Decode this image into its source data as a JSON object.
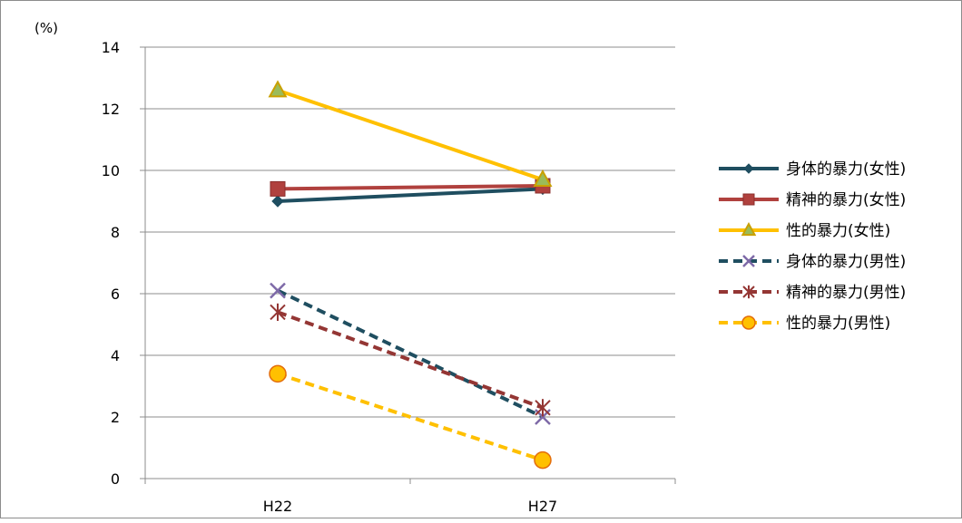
{
  "chart_data": {
    "type": "line",
    "unit_label": "(%)",
    "categories": [
      "H22",
      "H27"
    ],
    "ylim": [
      0,
      14
    ],
    "yticks": [
      0,
      2,
      4,
      6,
      8,
      10,
      12,
      14
    ],
    "grid": true,
    "legend_position": "right",
    "series": [
      {
        "name": "身体的暴力(女性)",
        "values": [
          9.0,
          9.4
        ],
        "color": "#1F4E60",
        "dash": "solid",
        "marker": "diamond"
      },
      {
        "name": "精神的暴力(女性)",
        "values": [
          9.4,
          9.5
        ],
        "color": "#B0413E",
        "dash": "solid",
        "marker": "square"
      },
      {
        "name": "性的暴力(女性)",
        "values": [
          12.6,
          9.7
        ],
        "color": "#FFC000",
        "dash": "solid",
        "marker": "triangle"
      },
      {
        "name": "身体的暴力(男性)",
        "values": [
          6.1,
          2.0
        ],
        "color": "#1F4E60",
        "dash": "dashed",
        "marker": "x"
      },
      {
        "name": "精神的暴力(男性)",
        "values": [
          5.4,
          2.3
        ],
        "color": "#943634",
        "dash": "dashed",
        "marker": "star"
      },
      {
        "name": "性的暴力(男性)",
        "values": [
          3.4,
          0.6
        ],
        "color": "#FFC000",
        "dash": "dashed",
        "marker": "circle"
      }
    ]
  }
}
